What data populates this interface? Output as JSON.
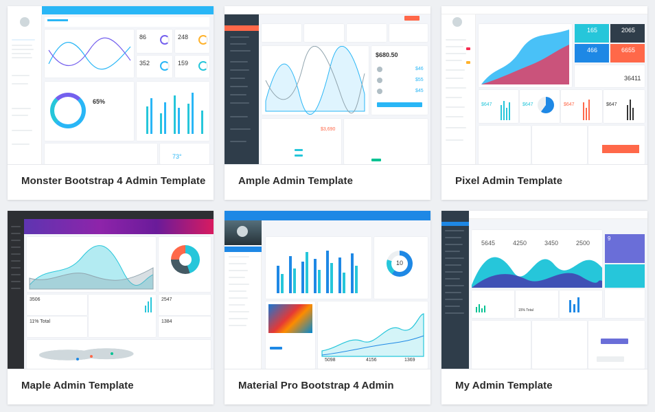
{
  "templates": [
    {
      "title": "Monster Bootstrap 4 Admin Template",
      "accent": "#29b6f6",
      "stats": [
        "86",
        "248",
        "352",
        "159"
      ],
      "percent": "65%",
      "weather": "73°"
    },
    {
      "title": "Ample Admin Template",
      "accent": "#ff6849",
      "stats": [
        "$680.50",
        "$3,690",
        "$46",
        "$55",
        "$45"
      ]
    },
    {
      "title": "Pixel Admin Template",
      "accent": "#7460ee",
      "stats": [
        "165",
        "2065",
        "466",
        "6655",
        "36411",
        "$647",
        "$647",
        "$647",
        "$647"
      ]
    },
    {
      "title": "Maple Admin Template",
      "accent": "#9c27b0",
      "stats": [
        "3506",
        "11% Total",
        "2547",
        "1384"
      ]
    },
    {
      "title": "Material Pro Bootstrap 4 Admin",
      "accent": "#1e88e5",
      "stats": [
        "10",
        "5098",
        "4156",
        "1369"
      ]
    },
    {
      "title": "My Admin Template",
      "accent": "#6a6ed8",
      "stats": [
        "5645",
        "4250",
        "3450",
        "2500",
        "9",
        "15% Total"
      ]
    }
  ]
}
